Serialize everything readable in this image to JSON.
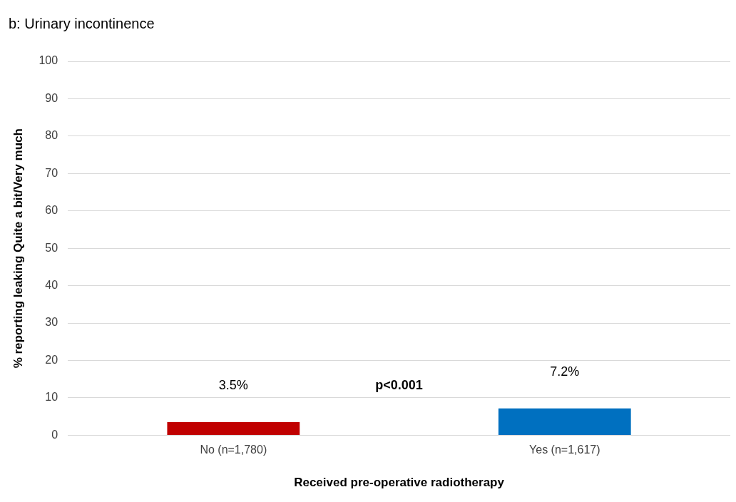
{
  "chart_data": {
    "type": "bar",
    "title": "b: Urinary incontinence",
    "xlabel": "Received pre-operative radiotherapy",
    "ylabel": "% reporting leaking Quite a bit/Very much",
    "categories": [
      "No (n=1,780)",
      "Yes (n=1,617)"
    ],
    "values": [
      3.5,
      7.2
    ],
    "colors": [
      "#c00000",
      "#0070c0"
    ],
    "value_labels": [
      "3.5%",
      "7.2%"
    ],
    "annotations": [
      "p<0.001"
    ],
    "ylim": [
      0,
      100
    ],
    "yticks": [
      0,
      10,
      20,
      30,
      40,
      50,
      60,
      70,
      80,
      90,
      100
    ],
    "grid": "y",
    "legend": false
  }
}
